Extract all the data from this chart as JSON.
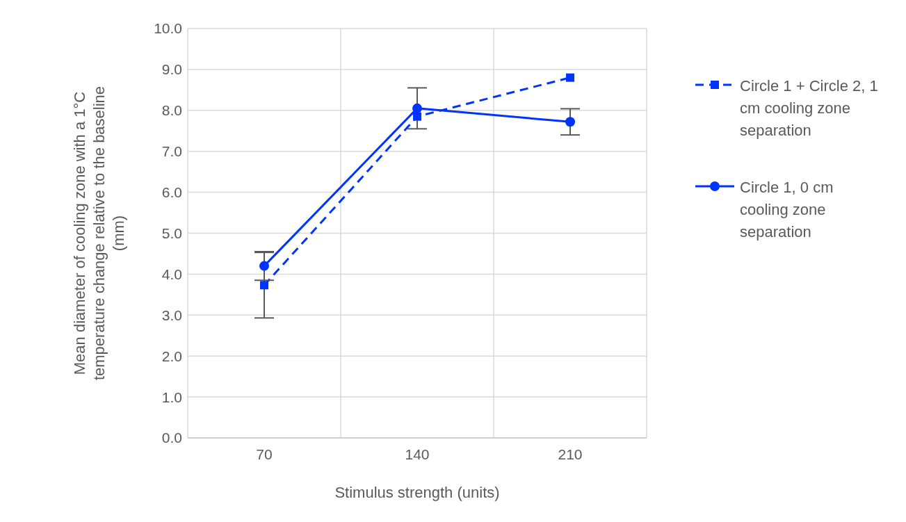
{
  "chart_data": {
    "type": "line",
    "xlabel": "Stimulus strength (units)",
    "ylabel": "Mean diameter of cooling zone with a 1°C temperature change relative to the baseline (mm)",
    "categories": [
      "70",
      "140",
      "210"
    ],
    "series": [
      {
        "name": "Circle 1 + Circle 2, 1 cm cooling zone separation",
        "color": "#0033ff",
        "values": [
          3.73,
          7.85,
          8.8
        ],
        "errors": [
          0.8,
          null,
          null
        ],
        "marker": "square",
        "line_style": "dashed"
      },
      {
        "name": "Circle 1, 0 cm cooling zone separation",
        "color": "#0033ff",
        "values": [
          4.2,
          8.05,
          7.72
        ],
        "errors": [
          0.35,
          0.5,
          0.32
        ],
        "marker": "circle",
        "line_style": "solid"
      }
    ],
    "ylim": [
      0,
      10
    ],
    "yticks": [
      {
        "value": 0,
        "label": "0.0"
      },
      {
        "value": 1,
        "label": "1.0"
      },
      {
        "value": 2,
        "label": "2.0"
      },
      {
        "value": 3,
        "label": "3.0"
      },
      {
        "value": 4,
        "label": "4.0"
      },
      {
        "value": 5,
        "label": "5.0"
      },
      {
        "value": 6,
        "label": "6.0"
      },
      {
        "value": 7,
        "label": "7.0"
      },
      {
        "value": 8,
        "label": "8.0"
      },
      {
        "value": 9,
        "label": "9.0"
      },
      {
        "value": 10,
        "label": "10.0"
      }
    ],
    "grid": true,
    "legend": "right"
  }
}
